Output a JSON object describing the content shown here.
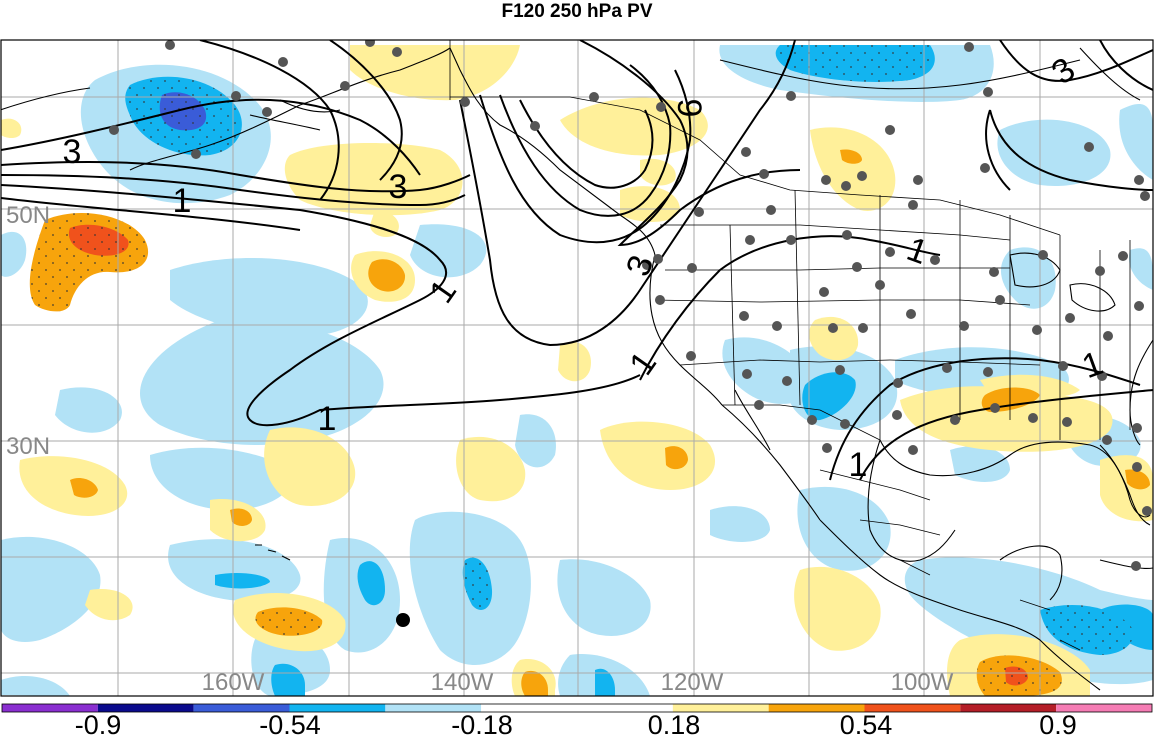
{
  "title": "F120 250 hPa PV",
  "lat_labels": [
    "50N",
    "30N"
  ],
  "lon_labels": [
    "160W",
    "140W",
    "120W",
    "100W"
  ],
  "contour_labels": [
    "3",
    "3",
    "1",
    "1",
    "1",
    "9",
    "3",
    "1",
    "1",
    "1",
    "3",
    "1"
  ],
  "colorbar": {
    "labels": [
      "-0.9",
      "-0.54",
      "-0.18",
      "0.18",
      "0.54",
      "0.9"
    ],
    "colors": [
      "#8a2fd0",
      "#0a0a8c",
      "#3a5cd8",
      "#12b4f0",
      "#b2e2f6",
      "#ffffff",
      "#ffffff",
      "#fff09a",
      "#f7a40c",
      "#f0521c",
      "#b41e28",
      "#f57cb4"
    ]
  },
  "fill_colors": {
    "light_blue": "#b2e2f6",
    "blue": "#12b4f0",
    "dark_blue": "#3a5cd8",
    "light_yellow": "#fff09a",
    "orange": "#f7a40c",
    "red": "#f0521c"
  }
}
